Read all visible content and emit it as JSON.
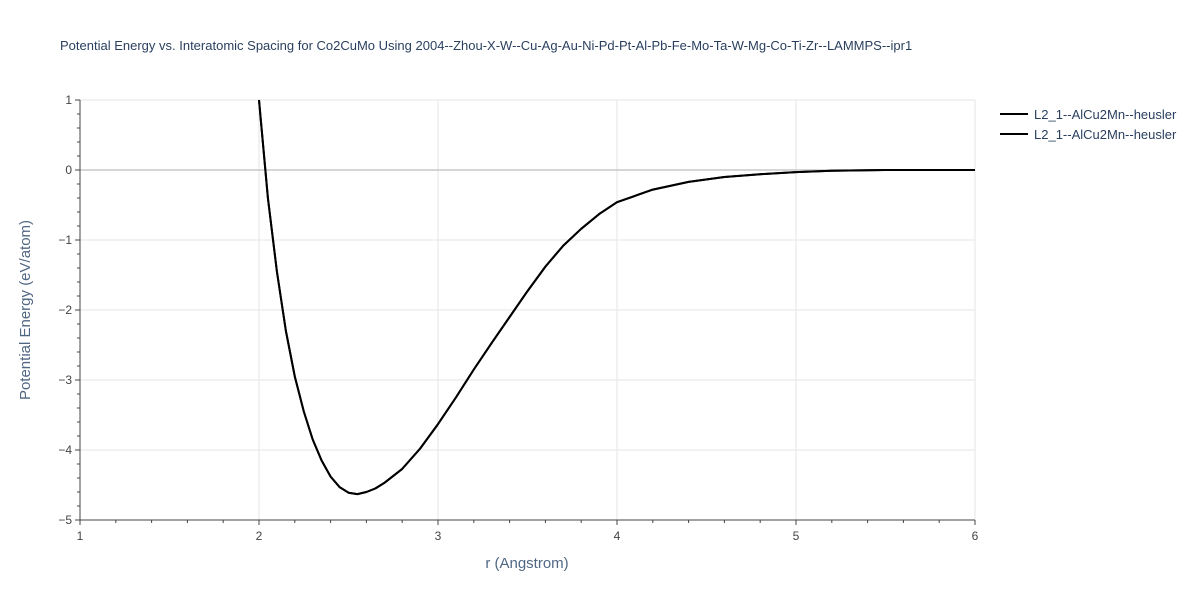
{
  "chart_data": {
    "type": "line",
    "title": "Potential Energy vs. Interatomic Spacing for Co2CuMo Using 2004--Zhou-X-W--Cu-Ag-Au-Ni-Pd-Pt-Al-Pb-Fe-Mo-Ta-W-Mg-Co-Ti-Zr--LAMMPS--ipr1",
    "xlabel": "r (Angstrom)",
    "ylabel": "Potential Energy (eV/atom)",
    "xlim": [
      1,
      6
    ],
    "ylim": [
      -5,
      1
    ],
    "x_ticks": [
      1,
      2,
      3,
      4,
      5,
      6
    ],
    "y_ticks": [
      1,
      0,
      -1,
      -2,
      -3,
      -4,
      -5
    ],
    "x_tick_labels": [
      "1",
      "2",
      "3",
      "4",
      "5",
      "6"
    ],
    "y_tick_labels": [
      "1",
      "0",
      "−1",
      "−2",
      "−3",
      "−4",
      "−5"
    ],
    "grid": true,
    "legend_position": "top-right",
    "series": [
      {
        "name": "L2_1--AlCu2Mn--heusler",
        "color": "#000000",
        "x": [
          2.0,
          2.05,
          2.1,
          2.15,
          2.2,
          2.25,
          2.3,
          2.35,
          2.4,
          2.45,
          2.5,
          2.55,
          2.6,
          2.65,
          2.7,
          2.8,
          2.9,
          3.0,
          3.1,
          3.2,
          3.3,
          3.4,
          3.5,
          3.6,
          3.7,
          3.8,
          3.9,
          4.0,
          4.2,
          4.4,
          4.6,
          4.8,
          5.0,
          5.2,
          5.5,
          6.0
        ],
        "y": [
          1.0,
          -0.4,
          -1.45,
          -2.3,
          -2.95,
          -3.45,
          -3.85,
          -4.15,
          -4.38,
          -4.53,
          -4.61,
          -4.63,
          -4.6,
          -4.55,
          -4.47,
          -4.27,
          -3.98,
          -3.63,
          -3.25,
          -2.85,
          -2.47,
          -2.1,
          -1.73,
          -1.38,
          -1.08,
          -0.84,
          -0.63,
          -0.46,
          -0.28,
          -0.17,
          -0.1,
          -0.06,
          -0.03,
          -0.01,
          0.0,
          0.0
        ]
      },
      {
        "name": "L2_1--AlCu2Mn--heusler",
        "color": "#000000",
        "x": [
          2.0,
          2.05,
          2.1,
          2.15,
          2.2,
          2.25,
          2.3,
          2.35,
          2.4,
          2.45,
          2.5,
          2.55,
          2.6,
          2.65,
          2.7,
          2.8,
          2.9,
          3.0,
          3.1,
          3.2,
          3.3,
          3.4,
          3.5,
          3.6,
          3.7,
          3.8,
          3.9,
          4.0,
          4.2,
          4.4,
          4.6,
          4.8,
          5.0,
          5.2,
          5.5,
          6.0
        ],
        "y": [
          1.0,
          -0.4,
          -1.45,
          -2.3,
          -2.95,
          -3.45,
          -3.85,
          -4.15,
          -4.38,
          -4.53,
          -4.61,
          -4.63,
          -4.6,
          -4.55,
          -4.47,
          -4.27,
          -3.98,
          -3.63,
          -3.25,
          -2.85,
          -2.47,
          -2.1,
          -1.73,
          -1.38,
          -1.08,
          -0.84,
          -0.63,
          -0.46,
          -0.28,
          -0.17,
          -0.1,
          -0.06,
          -0.03,
          -0.01,
          0.0,
          0.0
        ]
      }
    ]
  }
}
